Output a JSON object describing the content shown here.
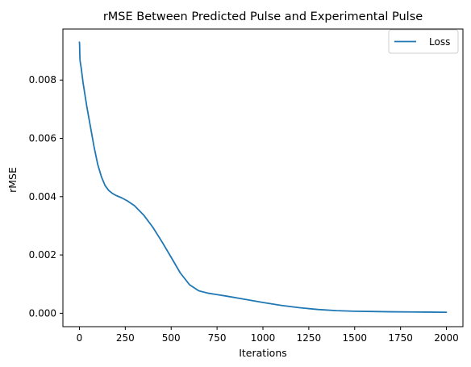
{
  "chart_data": {
    "type": "line",
    "title": "rMSE Between Predicted Pulse and Experimental Pulse",
    "xlabel": "Iterations",
    "ylabel": "rMSE",
    "xlim": [
      -90,
      2090
    ],
    "ylim": [
      -0.00046,
      0.00975
    ],
    "x_ticks": [
      0,
      250,
      500,
      750,
      1000,
      1250,
      1500,
      1750,
      2000
    ],
    "x_tick_labels": [
      "0",
      "250",
      "500",
      "750",
      "1000",
      "1250",
      "1500",
      "1750",
      "2000"
    ],
    "y_ticks": [
      0.0,
      0.002,
      0.004,
      0.006,
      0.008
    ],
    "y_tick_labels": [
      "0.000",
      "0.002",
      "0.004",
      "0.006",
      "0.008"
    ],
    "grid": false,
    "legend_position": "top-right",
    "series": [
      {
        "name": "Loss",
        "color": "#1f77b4",
        "x": [
          0,
          1,
          2,
          3,
          5,
          10,
          20,
          40,
          60,
          80,
          100,
          120,
          140,
          160,
          180,
          200,
          230,
          260,
          300,
          350,
          400,
          450,
          500,
          550,
          600,
          650,
          700,
          750,
          800,
          900,
          1000,
          1100,
          1200,
          1300,
          1400,
          1500,
          1600,
          1700,
          1800,
          1900,
          2000
        ],
        "y": [
          0.0093,
          0.0092,
          0.0089,
          0.0087,
          0.0086,
          0.0084,
          0.0079,
          0.0071,
          0.0064,
          0.0057,
          0.0051,
          0.00468,
          0.00438,
          0.00421,
          0.00411,
          0.00404,
          0.00396,
          0.00386,
          0.00369,
          0.00337,
          0.00295,
          0.00245,
          0.00192,
          0.00138,
          0.00098,
          0.00077,
          0.00069,
          0.00064,
          0.00059,
          0.00048,
          0.00037,
          0.00027,
          0.00019,
          0.00013,
          9e-05,
          7e-05,
          6e-05,
          5e-05,
          4.5e-05,
          4e-05,
          3.5e-05
        ]
      }
    ]
  }
}
